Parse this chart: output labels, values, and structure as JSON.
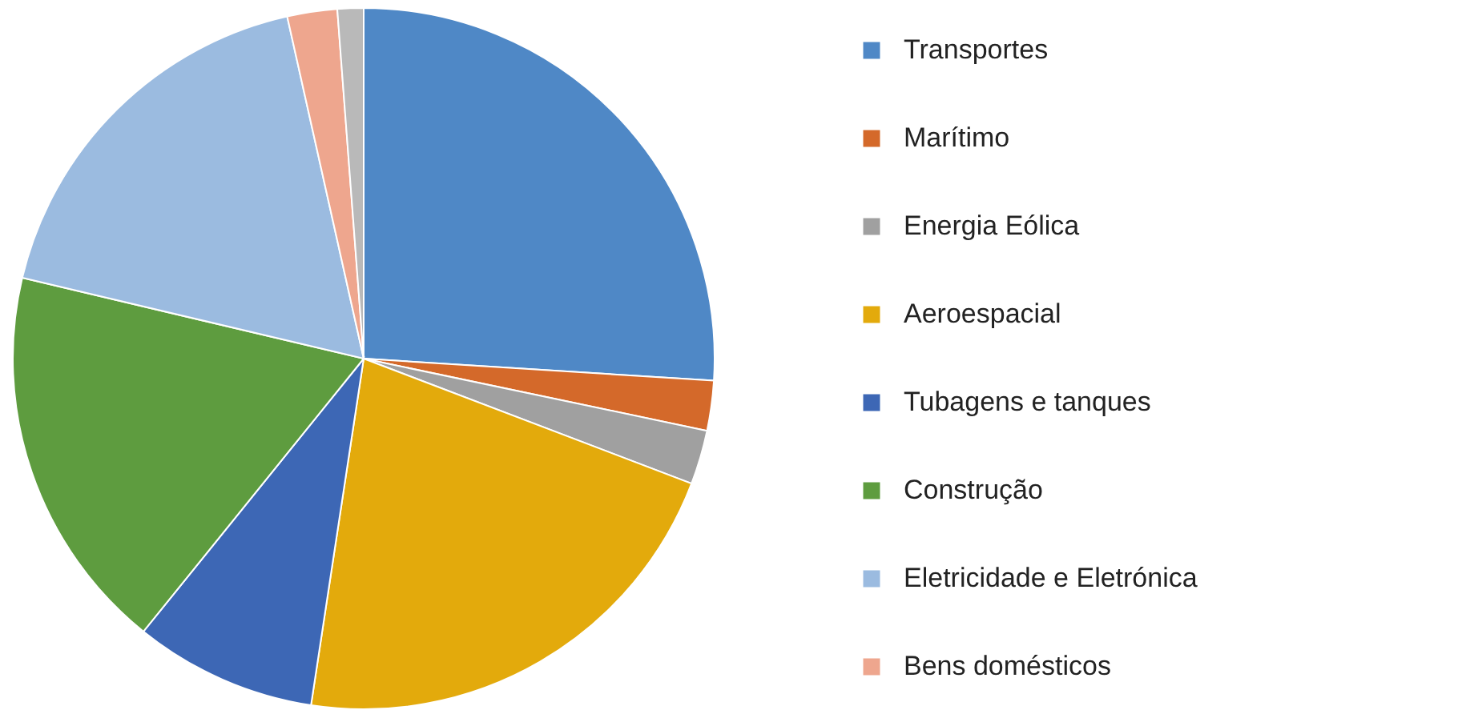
{
  "chart_data": {
    "type": "pie",
    "categories": [
      "Transportes",
      "Marítimo",
      "Energia Eólica",
      "Aeroespacial",
      "Tubagens e tanques",
      "Construção",
      "Eletricidade e Eletrónica",
      "Bens domésticos",
      null
    ],
    "values": [
      26.0,
      2.3,
      2.5,
      21.6,
      8.4,
      17.9,
      17.8,
      2.3,
      1.2
    ],
    "colors": [
      "#4f88c6",
      "#d4692a",
      "#a0a0a0",
      "#e3aa0c",
      "#3d67b5",
      "#5e9c3f",
      "#9bbbe0",
      "#eea68e",
      "#b9b9b9"
    ],
    "legend": "right"
  }
}
